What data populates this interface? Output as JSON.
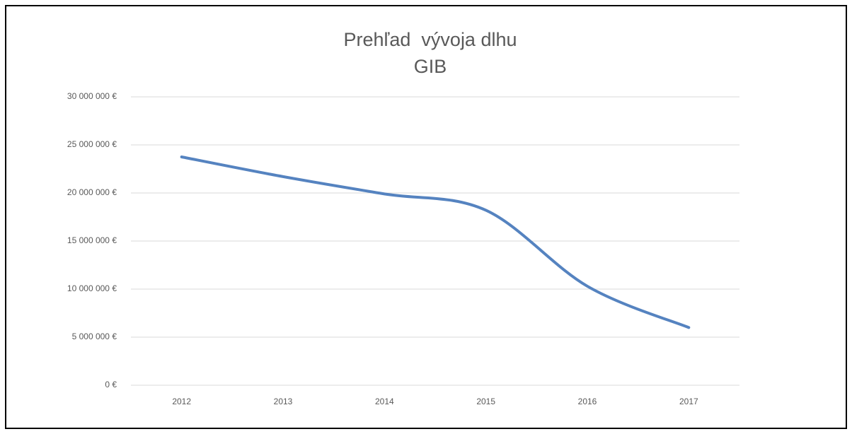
{
  "chart_data": {
    "type": "line",
    "title": "Prehľad  vývoja dlhu",
    "subtitle": "GIB",
    "categories": [
      "2012",
      "2013",
      "2014",
      "2015",
      "2016",
      "2017"
    ],
    "series": [
      {
        "color": "#5583c0",
        "values": [
          23750000,
          21700000,
          19900000,
          18200000,
          10300000,
          6000000
        ]
      }
    ],
    "ylim": [
      0,
      30000000
    ],
    "yticks": [
      {
        "value": 0,
        "label": "0 €"
      },
      {
        "value": 5000000,
        "label": "5 000 000 €"
      },
      {
        "value": 10000000,
        "label": "10 000 000 €"
      },
      {
        "value": 15000000,
        "label": "15 000 000 €"
      },
      {
        "value": 20000000,
        "label": "20 000 000 €"
      },
      {
        "value": 25000000,
        "label": "25 000 000 €"
      },
      {
        "value": 30000000,
        "label": "30 000 000 €"
      }
    ],
    "grid": true,
    "smooth": true
  }
}
